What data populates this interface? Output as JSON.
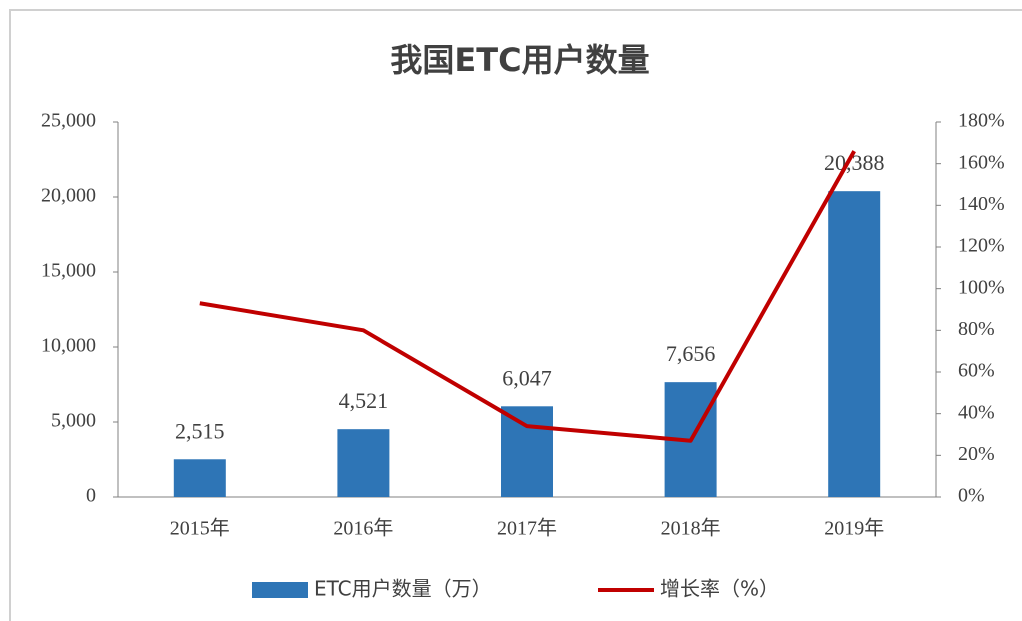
{
  "chart_data": {
    "type": "bar-line",
    "title": "我国ETC用户数量",
    "categories": [
      "2015年",
      "2016年",
      "2017年",
      "2018年",
      "2019年"
    ],
    "series": [
      {
        "name": "ETC用户数量（万）",
        "type": "bar",
        "color": "#2e75b6",
        "values": [
          2515,
          4521,
          6047,
          7656,
          20388
        ],
        "value_labels": [
          "2,515",
          "4,521",
          "6,047",
          "7,656",
          "20,388"
        ]
      },
      {
        "name": "增长率（%）",
        "type": "line",
        "color": "#c00000",
        "axis": "y2",
        "values": [
          93,
          80,
          34,
          27,
          166
        ]
      }
    ],
    "ylim": [
      0,
      25000
    ],
    "yticks": [
      0,
      {
        "value": 5000,
        "label": "5,000"
      },
      {
        "value": 10000,
        "label": "10,000"
      },
      {
        "value": 15000,
        "label": "15,000"
      },
      {
        "value": 20000,
        "label": "20,000"
      },
      {
        "value": 25000,
        "label": "25,000"
      }
    ],
    "y2lim": [
      0,
      180
    ],
    "y2ticks": [
      {
        "value": 0,
        "label": "0%"
      },
      {
        "value": 20,
        "label": "20%"
      },
      {
        "value": 40,
        "label": "40%"
      },
      {
        "value": 60,
        "label": "60%"
      },
      {
        "value": 80,
        "label": "80%"
      },
      {
        "value": 100,
        "label": "100%"
      },
      {
        "value": 120,
        "label": "120%"
      },
      {
        "value": 140,
        "label": "140%"
      },
      {
        "value": 160,
        "label": "160%"
      },
      {
        "value": 180,
        "label": "180%"
      }
    ],
    "grid": false,
    "legend": "bottom"
  }
}
